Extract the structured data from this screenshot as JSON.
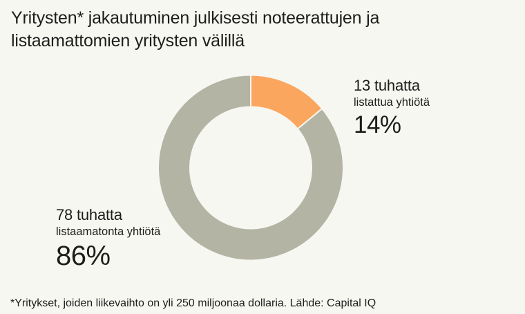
{
  "title": {
    "line1": "Yritysten* jakautuminen julkisesti noteerattujen ja",
    "line2": "listaamattomien yritysten välillä"
  },
  "annotations": {
    "listed": {
      "count_label": "13 tuhatta",
      "sublabel": "listattua yhtiötä",
      "percent": "14%"
    },
    "unlisted": {
      "count_label": "78 tuhatta",
      "sublabel": "listaamatonta yhtiötä",
      "percent": "86%"
    }
  },
  "footnote": "*Yritykset, joiden liikevaihto on yli 250 miljoonaa dollaria. Lähde: Capital IQ",
  "colors": {
    "background": "#F7F7F2",
    "text": "#1D1D1B",
    "listed_orange": "#FBA65E",
    "unlisted_gray": "#B3B4A3",
    "separator": "#F7F7F2"
  },
  "chart_data": {
    "type": "pie",
    "subtype": "donut",
    "title": "Yritysten* jakautuminen julkisesti noteerattujen ja listaamattomien yritysten välillä",
    "categories": [
      "listattua yhtiötä",
      "listaamatonta yhtiötä"
    ],
    "ids": [
      "listed",
      "unlisted"
    ],
    "values": [
      14,
      86
    ],
    "unit": "%",
    "counts_thousands": [
      13,
      78
    ],
    "counts_label": [
      "13 tuhatta",
      "78 tuhatta"
    ],
    "colors": [
      "#FBA65E",
      "#B3B4A3"
    ],
    "start_angle_deg": 0,
    "direction": "clockwise",
    "legend": "none",
    "labels_position": "outside",
    "source": "Capital IQ"
  }
}
